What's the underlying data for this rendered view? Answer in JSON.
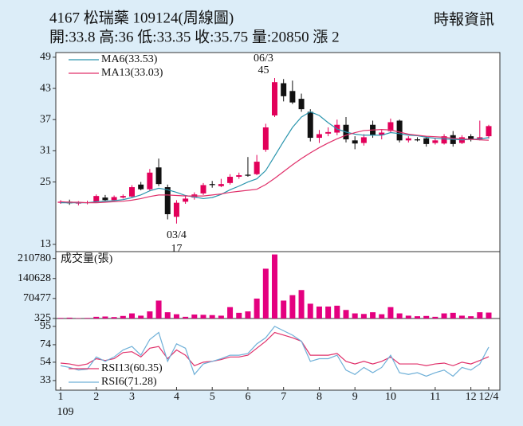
{
  "header": {
    "title": "4167  松瑞藥 109124(周線圖)",
    "source": "時報資訊",
    "subtitle": "開:33.8 高:36 低:33.35 收:35.75 量:20850 漲 2"
  },
  "chart_data": [
    {
      "type": "candlestick",
      "up_color": "#e2005a",
      "down_color": "#111111",
      "ylim": [
        11.6,
        49.9
      ],
      "yticks": [
        13,
        25,
        31,
        37,
        43,
        49
      ],
      "annotations": [
        "06/3",
        "45",
        "03/4",
        "17"
      ],
      "ohlc": [
        [
          21,
          21.5,
          20.8,
          21.2
        ],
        [
          21.2,
          21.6,
          20.6,
          20.9
        ],
        [
          20.9,
          21.3,
          20.5,
          21
        ],
        [
          21,
          21.4,
          20.7,
          21.1
        ],
        [
          21.2,
          22.6,
          21,
          22.3
        ],
        [
          22,
          22.5,
          21.3,
          21.5
        ],
        [
          21.5,
          22.4,
          21.3,
          22.1
        ],
        [
          22,
          22.6,
          21.8,
          22.3
        ],
        [
          22.2,
          24.4,
          22,
          24
        ],
        [
          24.5,
          25,
          23.4,
          23.6
        ],
        [
          23.6,
          27.5,
          23.2,
          26.8
        ],
        [
          27.8,
          29.5,
          24.2,
          24.6
        ],
        [
          24,
          24.5,
          17.8,
          18.8
        ],
        [
          18.3,
          21.5,
          17,
          21
        ],
        [
          21.2,
          22.3,
          20.8,
          21.8
        ],
        [
          22,
          23,
          21.6,
          22.6
        ],
        [
          22.8,
          24.8,
          22.5,
          24.4
        ],
        [
          24.6,
          25.2,
          23.9,
          24.4
        ],
        [
          24.2,
          25.6,
          24,
          24.6
        ],
        [
          24.8,
          26.5,
          24.5,
          26
        ],
        [
          26,
          26.8,
          25.6,
          26.3
        ],
        [
          26.4,
          29.8,
          26,
          26.2
        ],
        [
          26.5,
          30.2,
          26.3,
          28.9
        ],
        [
          31.2,
          36.2,
          30.8,
          35.5
        ],
        [
          37.8,
          45,
          37.5,
          44.2
        ],
        [
          44,
          44.8,
          40.5,
          41.5
        ],
        [
          42.5,
          44.5,
          40,
          40.3
        ],
        [
          41,
          42,
          38.5,
          39
        ],
        [
          38.5,
          39,
          32.8,
          33.5
        ],
        [
          33.5,
          35,
          32.5,
          34.2
        ],
        [
          34.3,
          35.5,
          33.8,
          34.6
        ],
        [
          34.5,
          37,
          34,
          36
        ],
        [
          36,
          37.5,
          32.6,
          33.2
        ],
        [
          33,
          33.8,
          31.3,
          32.4
        ],
        [
          32.5,
          34.2,
          32,
          33.6
        ],
        [
          36,
          36.8,
          33.5,
          34
        ],
        [
          34,
          35,
          33.2,
          34.5
        ],
        [
          34.8,
          37.2,
          34.5,
          36.5
        ],
        [
          36.8,
          37,
          32.6,
          33
        ],
        [
          33,
          33.8,
          32.6,
          33.4
        ],
        [
          33.2,
          33.6,
          32.8,
          33
        ],
        [
          33.4,
          33.8,
          31.8,
          32.3
        ],
        [
          32.5,
          33.5,
          32.2,
          33
        ],
        [
          32.4,
          34.2,
          32.2,
          33.8
        ],
        [
          34,
          34.8,
          31.8,
          32.3
        ],
        [
          32.5,
          34,
          32.3,
          33.6
        ],
        [
          33.8,
          34.2,
          32.8,
          33.2
        ],
        [
          33.2,
          36.8,
          33,
          33.6
        ],
        [
          33.8,
          36,
          33.35,
          35.75
        ]
      ],
      "series": [
        {
          "name": "MA6(33.53)",
          "color": "#2a95ad",
          "values": [
            21,
            21,
            21,
            21,
            21.2,
            21.3,
            21.4,
            21.6,
            22,
            22.5,
            23.3,
            23.8,
            23.5,
            23,
            22.4,
            22.1,
            21.8,
            22,
            22.6,
            23.5,
            24.2,
            25,
            25.6,
            27.2,
            30,
            32.8,
            35.5,
            37.5,
            38.5,
            37.8,
            36.4,
            35.2,
            34.6,
            34.2,
            34,
            34,
            34,
            34.5,
            34.3,
            34,
            33.9,
            33.6,
            33.4,
            33.3,
            33.2,
            33.1,
            33.2,
            33.3,
            33.53
          ]
        },
        {
          "name": "MA13(33.03)",
          "color": "#e0306a",
          "values": [
            21.2,
            21.1,
            21.1,
            21,
            21,
            21.1,
            21.2,
            21.3,
            21.5,
            21.8,
            22.2,
            22.5,
            22.5,
            22.4,
            22.3,
            22.3,
            22.3,
            22.5,
            22.7,
            23,
            23.2,
            23.4,
            23.6,
            24.5,
            25.7,
            27,
            28.3,
            29.5,
            30.6,
            31.6,
            32.5,
            33.3,
            34,
            34.5,
            34.9,
            35,
            35.1,
            35,
            34.6,
            34.2,
            34,
            33.8,
            33.7,
            33.6,
            33.4,
            33.3,
            33.2,
            33.1,
            33.03
          ]
        }
      ]
    },
    {
      "type": "bar",
      "title": "成交量(張)",
      "color": "#e4007f",
      "ylim": [
        0,
        235000
      ],
      "yticks": [
        325,
        70477,
        140628,
        210780
      ],
      "values": [
        2000,
        3000,
        1500,
        2000,
        6000,
        7000,
        5000,
        9000,
        18000,
        10000,
        25000,
        63000,
        22000,
        15000,
        6000,
        14000,
        13000,
        12000,
        10000,
        40000,
        20000,
        25000,
        70000,
        175000,
        225000,
        63000,
        82000,
        100000,
        52000,
        42000,
        42000,
        45000,
        30000,
        18000,
        16000,
        22000,
        15000,
        40000,
        18000,
        10000,
        8000,
        9000,
        6000,
        18000,
        20000,
        10000,
        8000,
        22000,
        20850
      ]
    },
    {
      "type": "line",
      "ylim": [
        22,
        104
      ],
      "yticks": [
        33,
        54,
        74,
        95
      ],
      "x_sublabel": "109",
      "categories": [
        "1",
        null,
        null,
        null,
        "2",
        null,
        null,
        null,
        "3",
        null,
        null,
        null,
        null,
        "4",
        null,
        null,
        null,
        "5",
        null,
        null,
        null,
        "6",
        null,
        null,
        null,
        "7",
        null,
        null,
        null,
        "8",
        null,
        null,
        null,
        "9",
        null,
        null,
        null,
        "10",
        null,
        null,
        null,
        null,
        "11",
        null,
        null,
        null,
        "12",
        null,
        "12/4"
      ],
      "series": [
        {
          "name": "RSI13(60.35)",
          "color": "#e0306a",
          "values": [
            53,
            52,
            50,
            52,
            58,
            56,
            58,
            65,
            66,
            60,
            70,
            72,
            58,
            68,
            62,
            50,
            54,
            55,
            57,
            60,
            60,
            62,
            70,
            78,
            88,
            85,
            82,
            78,
            62,
            62,
            62,
            64,
            55,
            52,
            55,
            52,
            55,
            60,
            52,
            52,
            52,
            50,
            52,
            53,
            50,
            54,
            52,
            56,
            60.35
          ]
        },
        {
          "name": "RSI6(71.28)",
          "color": "#6fb0d8",
          "values": [
            50,
            48,
            45,
            46,
            60,
            55,
            60,
            68,
            72,
            62,
            80,
            88,
            55,
            75,
            70,
            40,
            52,
            55,
            58,
            62,
            62,
            64,
            75,
            82,
            95,
            90,
            85,
            78,
            55,
            58,
            58,
            62,
            45,
            40,
            48,
            42,
            48,
            62,
            42,
            40,
            42,
            38,
            42,
            45,
            38,
            48,
            45,
            52,
            71.28
          ]
        }
      ]
    }
  ]
}
